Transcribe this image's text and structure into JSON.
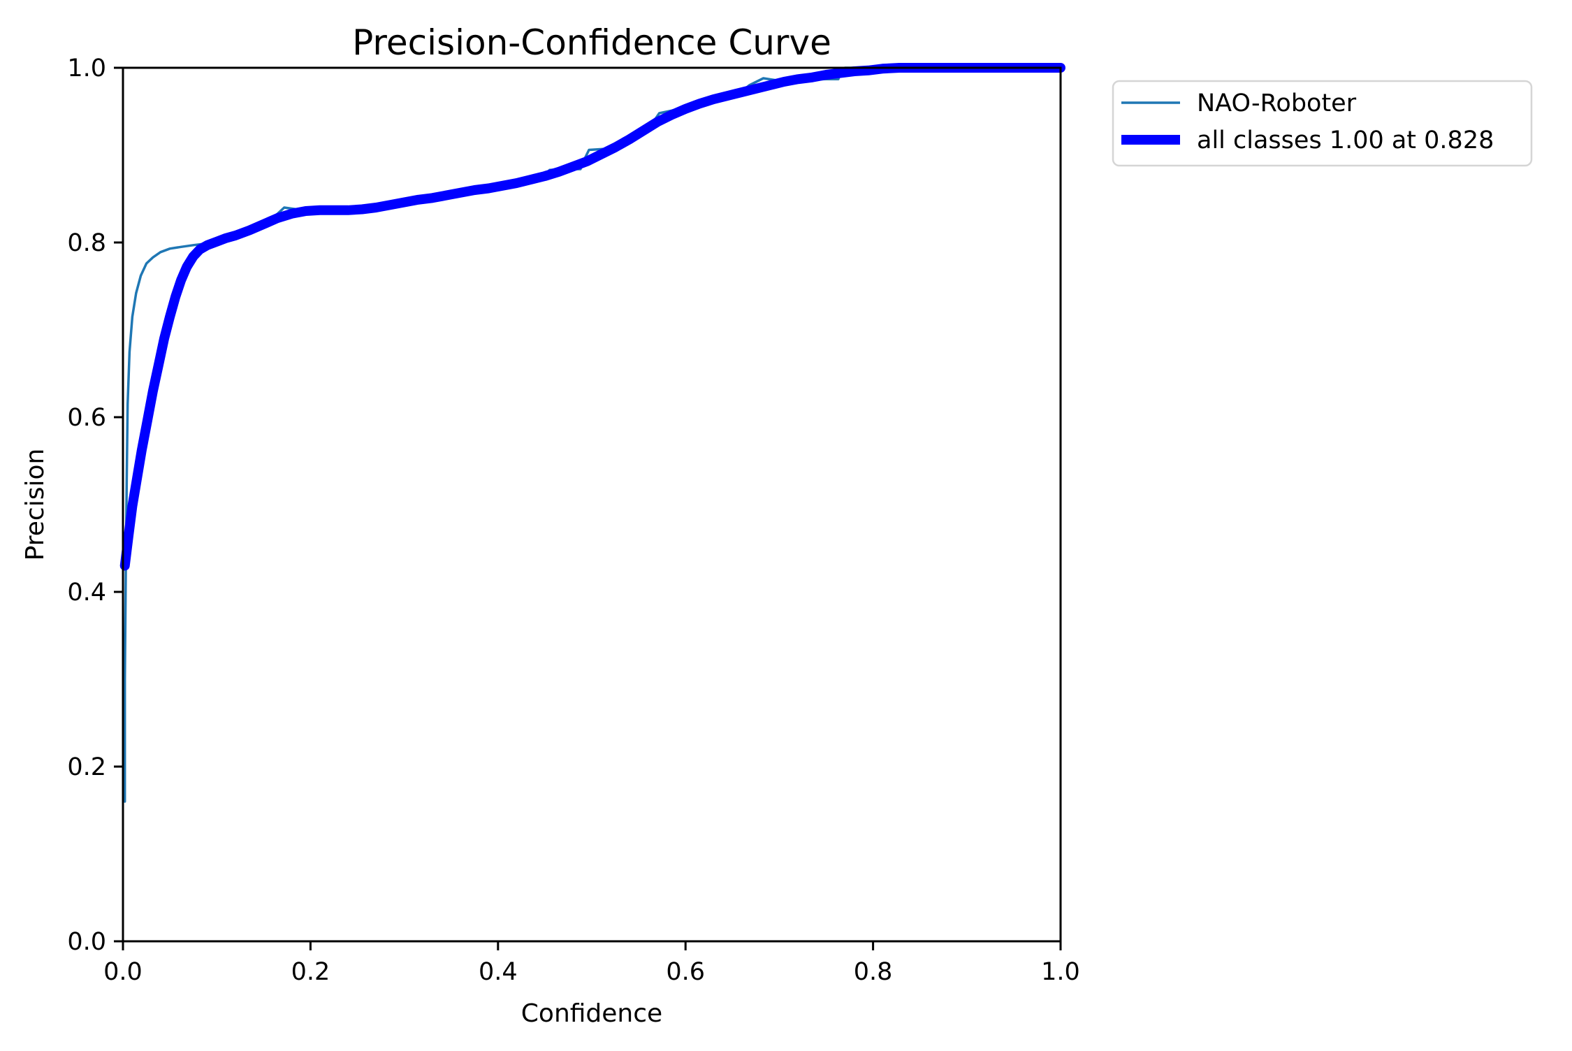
{
  "figure": {
    "background": "#ffffff",
    "spine_color": "#000000",
    "legend_border_color": "#d5d5d5"
  },
  "chart_data": {
    "type": "line",
    "title": "Precision-Confidence Curve",
    "xlabel": "Confidence",
    "ylabel": "Precision",
    "xlim": [
      0.0,
      1.0
    ],
    "ylim": [
      0.0,
      1.0
    ],
    "xticks": [
      "0.0",
      "0.2",
      "0.4",
      "0.6",
      "0.8",
      "1.0"
    ],
    "yticks": [
      "0.0",
      "0.2",
      "0.4",
      "0.6",
      "0.8",
      "1.0"
    ],
    "grid": false,
    "legend_position": "outside-upper-right",
    "series": [
      {
        "name": "NAO-Roboter",
        "color": "#1f77b4",
        "line_width": 3.5,
        "points": [
          [
            0.002,
            0.16
          ],
          [
            0.002,
            0.3
          ],
          [
            0.003,
            0.42
          ],
          [
            0.004,
            0.53
          ],
          [
            0.005,
            0.615
          ],
          [
            0.007,
            0.675
          ],
          [
            0.01,
            0.715
          ],
          [
            0.014,
            0.742
          ],
          [
            0.019,
            0.762
          ],
          [
            0.025,
            0.776
          ],
          [
            0.032,
            0.783
          ],
          [
            0.04,
            0.789
          ],
          [
            0.05,
            0.793
          ],
          [
            0.062,
            0.795
          ],
          [
            0.075,
            0.797
          ],
          [
            0.09,
            0.799
          ],
          [
            0.105,
            0.802
          ],
          [
            0.12,
            0.807
          ],
          [
            0.135,
            0.813
          ],
          [
            0.15,
            0.82
          ],
          [
            0.163,
            0.831
          ],
          [
            0.172,
            0.84
          ],
          [
            0.185,
            0.838
          ],
          [
            0.2,
            0.836
          ],
          [
            0.215,
            0.836
          ],
          [
            0.23,
            0.836
          ],
          [
            0.245,
            0.837
          ],
          [
            0.26,
            0.838
          ],
          [
            0.285,
            0.843
          ],
          [
            0.303,
            0.846
          ],
          [
            0.321,
            0.846
          ],
          [
            0.34,
            0.851
          ],
          [
            0.37,
            0.858
          ],
          [
            0.4,
            0.864
          ],
          [
            0.43,
            0.869
          ],
          [
            0.445,
            0.871
          ],
          [
            0.45,
            0.877
          ],
          [
            0.455,
            0.883
          ],
          [
            0.47,
            0.884
          ],
          [
            0.488,
            0.884
          ],
          [
            0.492,
            0.895
          ],
          [
            0.497,
            0.906
          ],
          [
            0.512,
            0.907
          ],
          [
            0.527,
            0.907
          ],
          [
            0.542,
            0.916
          ],
          [
            0.557,
            0.925
          ],
          [
            0.565,
            0.937
          ],
          [
            0.572,
            0.948
          ],
          [
            0.585,
            0.951
          ],
          [
            0.6,
            0.955
          ],
          [
            0.613,
            0.961
          ],
          [
            0.625,
            0.962
          ],
          [
            0.634,
            0.962
          ],
          [
            0.65,
            0.966
          ],
          [
            0.66,
            0.973
          ],
          [
            0.668,
            0.98
          ],
          [
            0.683,
            0.988
          ],
          [
            0.695,
            0.986
          ],
          [
            0.71,
            0.985
          ],
          [
            0.73,
            0.986
          ],
          [
            0.748,
            0.987
          ],
          [
            0.763,
            0.987
          ],
          [
            0.766,
            0.996
          ],
          [
            0.77,
            1.0
          ],
          [
            0.8,
            1.0
          ],
          [
            0.85,
            1.0
          ],
          [
            0.9,
            1.0
          ],
          [
            0.95,
            1.0
          ],
          [
            1.0,
            1.0
          ]
        ]
      },
      {
        "name": "all classes 1.00 at 0.828",
        "color": "#0000ff",
        "line_width": 14,
        "points": [
          [
            0.002,
            0.43
          ],
          [
            0.006,
            0.465
          ],
          [
            0.01,
            0.498
          ],
          [
            0.015,
            0.53
          ],
          [
            0.02,
            0.562
          ],
          [
            0.026,
            0.596
          ],
          [
            0.032,
            0.63
          ],
          [
            0.038,
            0.66
          ],
          [
            0.044,
            0.69
          ],
          [
            0.05,
            0.715
          ],
          [
            0.056,
            0.738
          ],
          [
            0.062,
            0.757
          ],
          [
            0.068,
            0.772
          ],
          [
            0.075,
            0.784
          ],
          [
            0.082,
            0.792
          ],
          [
            0.09,
            0.797
          ],
          [
            0.1,
            0.801
          ],
          [
            0.11,
            0.805
          ],
          [
            0.12,
            0.808
          ],
          [
            0.135,
            0.814
          ],
          [
            0.15,
            0.821
          ],
          [
            0.165,
            0.828
          ],
          [
            0.18,
            0.833
          ],
          [
            0.195,
            0.836
          ],
          [
            0.21,
            0.837
          ],
          [
            0.225,
            0.837
          ],
          [
            0.24,
            0.837
          ],
          [
            0.255,
            0.838
          ],
          [
            0.27,
            0.84
          ],
          [
            0.285,
            0.843
          ],
          [
            0.3,
            0.846
          ],
          [
            0.315,
            0.849
          ],
          [
            0.33,
            0.851
          ],
          [
            0.345,
            0.854
          ],
          [
            0.36,
            0.857
          ],
          [
            0.375,
            0.86
          ],
          [
            0.39,
            0.862
          ],
          [
            0.405,
            0.865
          ],
          [
            0.42,
            0.868
          ],
          [
            0.435,
            0.872
          ],
          [
            0.45,
            0.876
          ],
          [
            0.465,
            0.881
          ],
          [
            0.48,
            0.887
          ],
          [
            0.495,
            0.893
          ],
          [
            0.51,
            0.901
          ],
          [
            0.525,
            0.909
          ],
          [
            0.54,
            0.918
          ],
          [
            0.555,
            0.928
          ],
          [
            0.57,
            0.938
          ],
          [
            0.585,
            0.946
          ],
          [
            0.6,
            0.953
          ],
          [
            0.615,
            0.959
          ],
          [
            0.63,
            0.964
          ],
          [
            0.645,
            0.968
          ],
          [
            0.66,
            0.972
          ],
          [
            0.675,
            0.976
          ],
          [
            0.69,
            0.98
          ],
          [
            0.705,
            0.984
          ],
          [
            0.72,
            0.987
          ],
          [
            0.735,
            0.989
          ],
          [
            0.75,
            0.992
          ],
          [
            0.765,
            0.994
          ],
          [
            0.78,
            0.996
          ],
          [
            0.795,
            0.997
          ],
          [
            0.81,
            0.999
          ],
          [
            0.828,
            1.0
          ],
          [
            0.87,
            1.0
          ],
          [
            0.91,
            1.0
          ],
          [
            0.95,
            1.0
          ],
          [
            1.0,
            1.0
          ]
        ]
      }
    ]
  },
  "legend": {
    "entries": [
      {
        "label": "NAO-Roboter"
      },
      {
        "label": "all classes 1.00 at 0.828"
      }
    ]
  }
}
